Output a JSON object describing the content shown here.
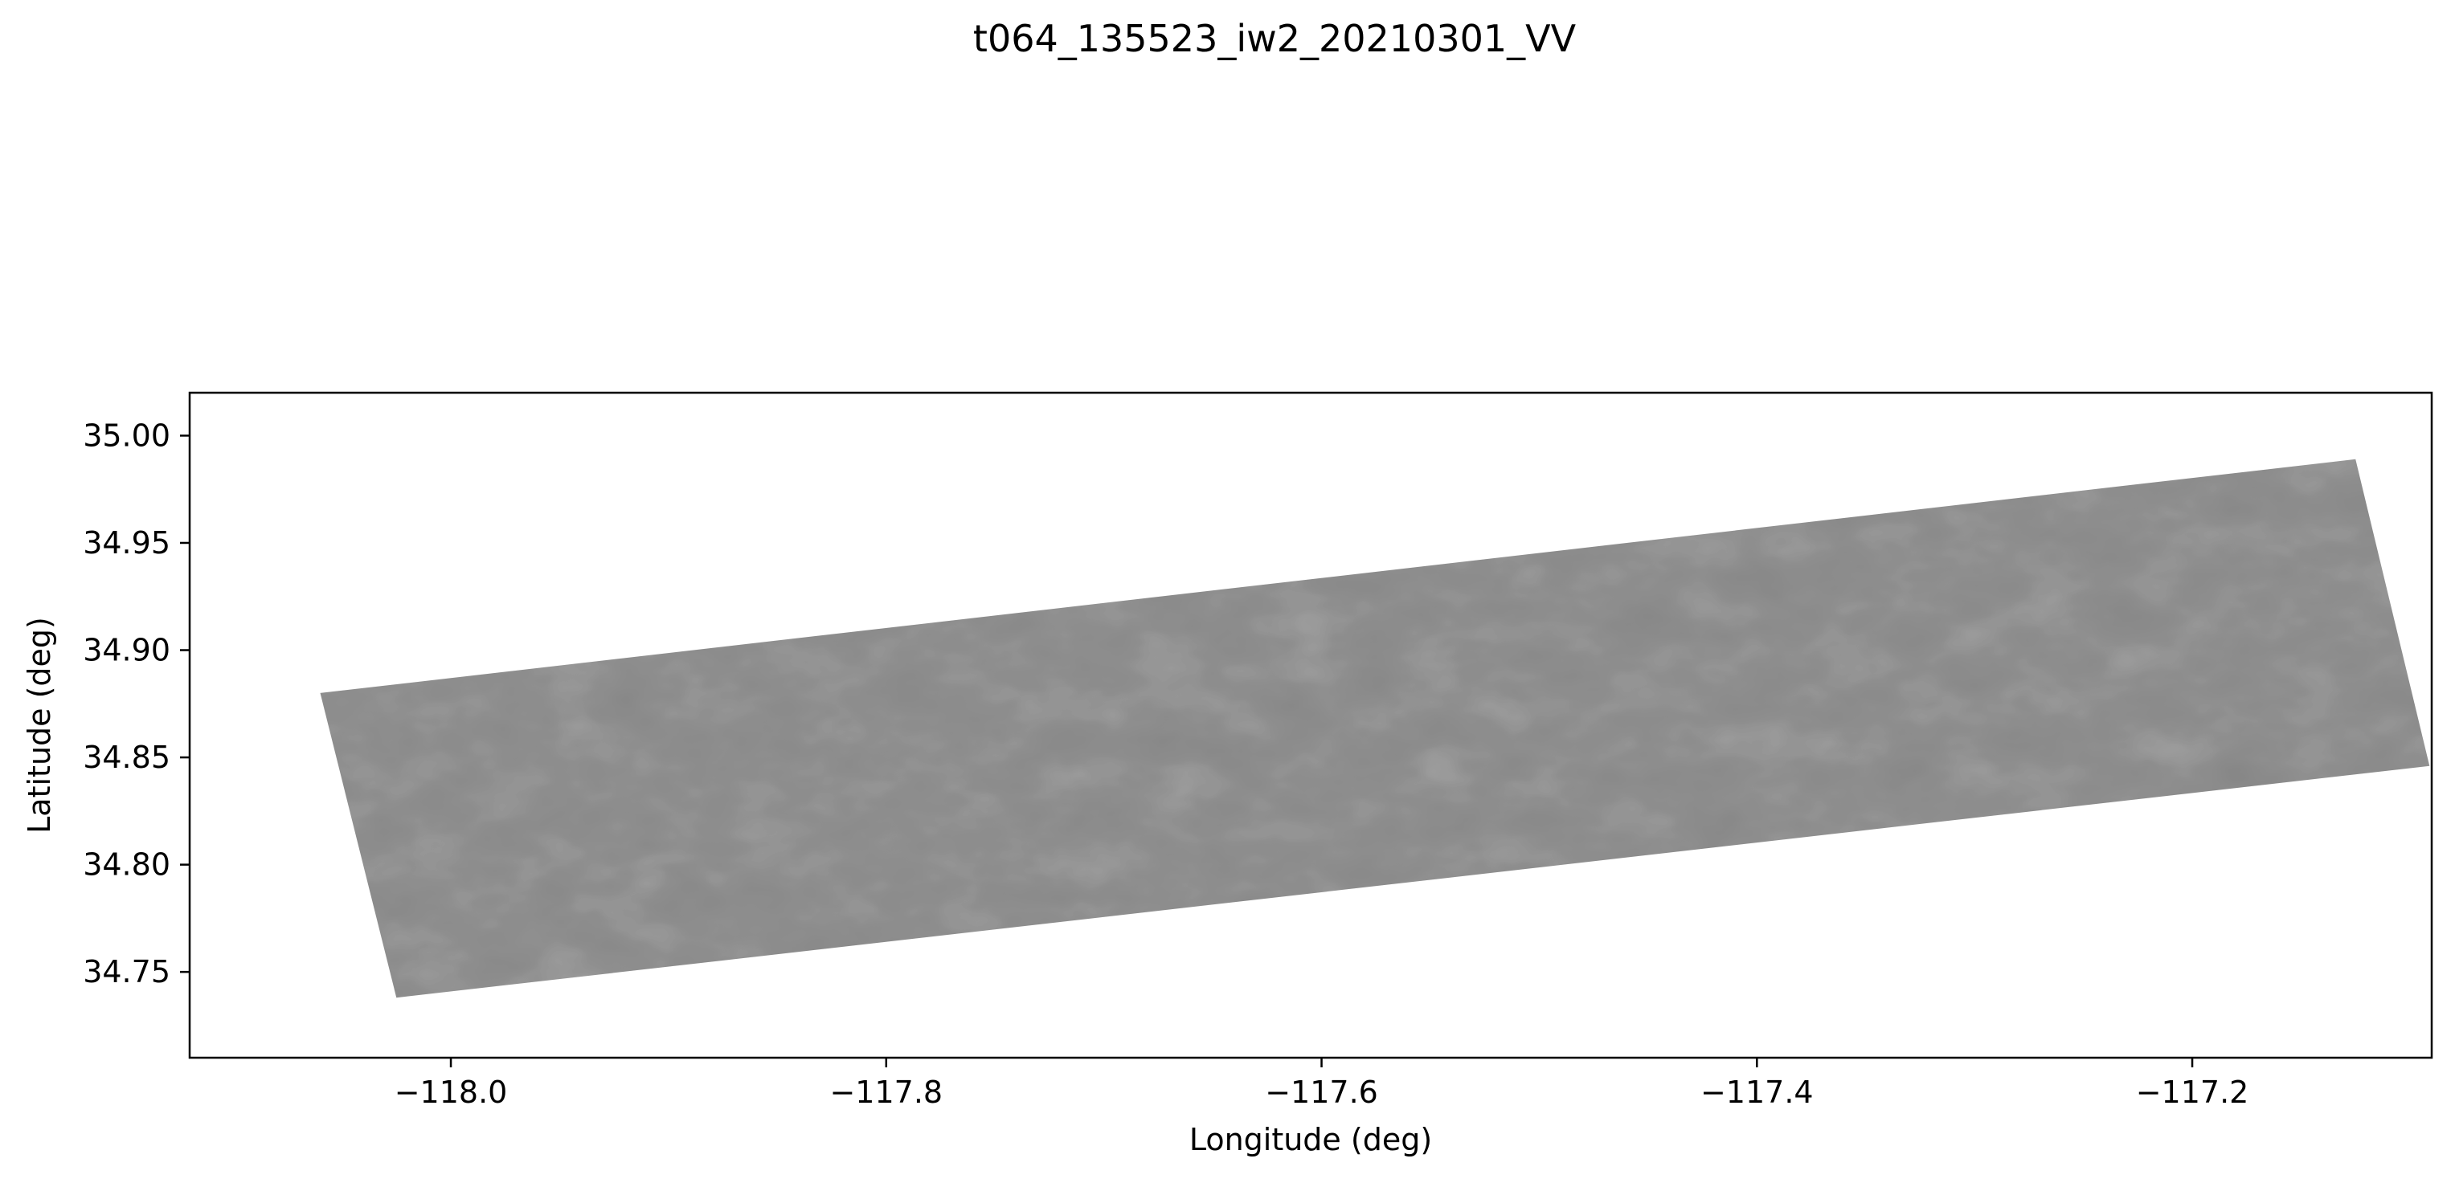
{
  "chart_data": {
    "type": "image",
    "title": "t064_135523_iw2_20210301_VV",
    "xlabel": "Longitude (deg)",
    "ylabel": "Latitude (deg)",
    "xlim": [
      -118.12,
      -117.09
    ],
    "ylim": [
      34.71,
      35.02
    ],
    "xticks": [
      -118.0,
      -117.8,
      -117.6,
      -117.4,
      -117.2
    ],
    "xtick_labels": [
      "−118.0",
      "−117.8",
      "−117.6",
      "−117.4",
      "−117.2"
    ],
    "yticks": [
      35.0,
      34.95,
      34.9,
      34.85,
      34.8,
      34.75
    ],
    "ytick_labels": [
      "35.00",
      "34.95",
      "34.90",
      "34.85",
      "34.80",
      "34.75"
    ],
    "grid": false,
    "colormap": "gray",
    "footprint_lonlat": [
      [
        -118.06,
        34.88
      ],
      [
        -117.125,
        34.989
      ],
      [
        -117.091,
        34.846
      ],
      [
        -118.025,
        34.738
      ]
    ],
    "footprint_color": "#8e8e8e"
  }
}
